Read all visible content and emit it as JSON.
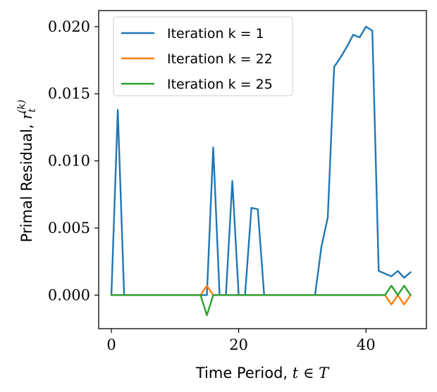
{
  "chart_data": {
    "type": "line",
    "xlabel": "Time Period, ",
    "xlabel_math": "t ∈ T",
    "ylabel": "Primal Residual, ",
    "ylabel_math": "r",
    "ylabel_sub": "t",
    "ylabel_sup": "(k)",
    "xlim": [
      -2,
      49.5
    ],
    "ylim": [
      -0.0025,
      0.0212
    ],
    "xticks": [
      0,
      20,
      40
    ],
    "xtick_labels": [
      "0",
      "20",
      "40"
    ],
    "yticks": [
      0.0,
      0.005,
      0.01,
      0.015,
      0.02
    ],
    "ytick_labels": [
      "0.000",
      "0.005",
      "0.010",
      "0.015",
      "0.020"
    ],
    "grid": false,
    "legend_position": "top-left",
    "series": [
      {
        "name": "Iteration k = 1",
        "color": "#1f77b4",
        "x": [
          0,
          1,
          2,
          3,
          4,
          5,
          6,
          7,
          8,
          9,
          10,
          11,
          12,
          13,
          14,
          15,
          16,
          17,
          18,
          19,
          20,
          21,
          22,
          23,
          24,
          25,
          26,
          27,
          28,
          29,
          30,
          31,
          32,
          33,
          34,
          35,
          36,
          37,
          38,
          39,
          40,
          41,
          42,
          43,
          44,
          45,
          46,
          47
        ],
        "y": [
          0,
          0.0138,
          0,
          0,
          0,
          0,
          0,
          0,
          0,
          0,
          0,
          0,
          0,
          0,
          0,
          0,
          0.011,
          0,
          0,
          0.0085,
          0,
          0,
          0.0065,
          0.0064,
          0,
          0,
          0,
          0,
          0,
          0,
          0,
          0,
          0,
          0.0036,
          0.0058,
          0.017,
          0.0177,
          0.0185,
          0.0194,
          0.0192,
          0.02,
          0.0197,
          0.0018,
          0.0016,
          0.0014,
          0.0018,
          0.0013,
          0.0017
        ]
      },
      {
        "name": "Iteration k = 22",
        "color": "#ff7f0e",
        "x": [
          0,
          14,
          15,
          16,
          43,
          44,
          45,
          46,
          47
        ],
        "y": [
          0,
          0,
          0.0007,
          0,
          0,
          -0.0007,
          0,
          -0.0007,
          0
        ]
      },
      {
        "name": "Iteration k = 25",
        "color": "#2ca02c",
        "x": [
          0,
          14,
          15,
          16,
          43,
          44,
          45,
          46,
          47
        ],
        "y": [
          0,
          0,
          -0.0015,
          0,
          0,
          0.0007,
          0,
          0.0007,
          0
        ]
      }
    ]
  }
}
